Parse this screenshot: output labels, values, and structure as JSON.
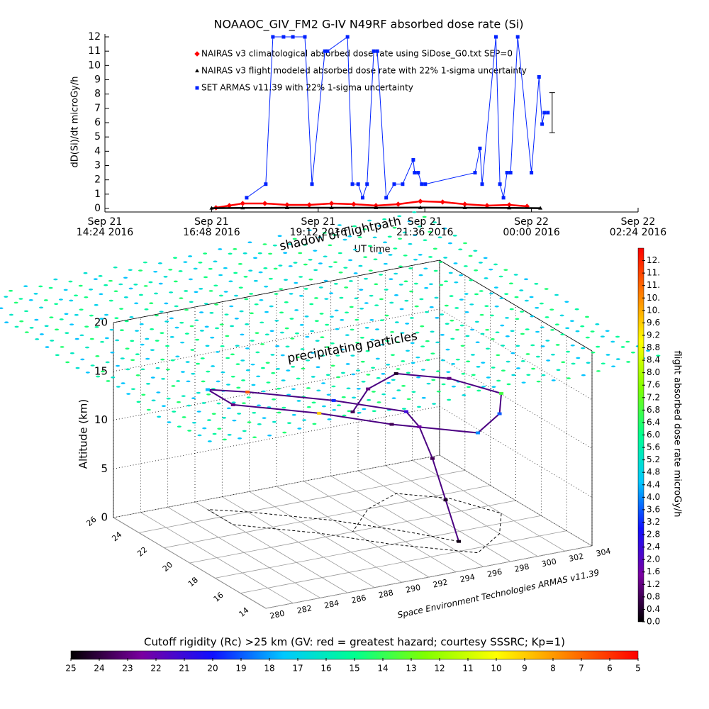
{
  "chart_data": [
    {
      "type": "line",
      "title": "NOAAOC_GIV_FM2 G-IV   N49RF  absorbed dose rate (Si)",
      "y_label": "dD(Si)/dt microGy/h",
      "x_label": "UT time",
      "xlim": [
        14.4,
        26.4
      ],
      "xticks": [
        {
          "value": 14.4,
          "label": "Sep 21\n14:24 2016"
        },
        {
          "value": 16.8,
          "label": "Sep 21\n16:48 2016"
        },
        {
          "value": 19.2,
          "label": "Sep 21\n19:12 2016"
        },
        {
          "value": 21.6,
          "label": "Sep 21\n21:36 2016"
        },
        {
          "value": 24,
          "label": "Sep 22\n00:00 2016"
        },
        {
          "value": 26.4,
          "label": "Sep 22\n02:24 2016"
        }
      ],
      "ylim": [
        0,
        12
      ],
      "yticks": [
        0,
        1,
        2,
        3,
        4,
        5,
        6,
        7,
        8,
        9,
        10,
        11,
        12
      ],
      "series": [
        {
          "name": "NAIRAS v3 climatological absorbed dose rate using SiDose_G0.txt SEP=0",
          "color": "#ff0000",
          "marker": "diamond",
          "x": [
            16.9,
            17.2,
            17.5,
            18.0,
            18.5,
            19.0,
            19.5,
            20.0,
            20.5,
            21.0,
            21.5,
            22.0,
            22.5,
            23.0,
            23.5,
            23.9
          ],
          "values": [
            0.05,
            0.2,
            0.35,
            0.35,
            0.25,
            0.25,
            0.35,
            0.3,
            0.2,
            0.3,
            0.5,
            0.45,
            0.3,
            0.2,
            0.25,
            0.15
          ]
        },
        {
          "name": "NAIRAS v3 flight modeled absorbed dose rate with 22% 1-sigma uncertainty",
          "color": "#000000",
          "marker": "triangle",
          "x": [
            16.8,
            17.5,
            18.5,
            19.5,
            20.5,
            21.5,
            22.5,
            23.5,
            24.2
          ],
          "values": [
            0.02,
            0.04,
            0.05,
            0.05,
            0.05,
            0.06,
            0.05,
            0.04,
            0.02
          ]
        },
        {
          "name": "SET ARMAS v11.39 with 22% 1-sigma uncertainty",
          "color": "#0022ff",
          "marker": "square",
          "x": [
            17.59,
            18.02,
            18.18,
            18.42,
            18.63,
            18.9,
            19.06,
            19.35,
            19.41,
            19.86,
            19.97,
            20.1,
            20.2,
            20.3,
            20.45,
            20.53,
            20.73,
            20.91,
            21.1,
            21.34,
            21.37,
            21.45,
            21.53,
            21.61,
            22.73,
            22.84,
            22.89,
            23.2,
            23.29,
            23.37,
            23.45,
            23.53,
            23.69,
            24.0,
            24.17,
            24.24,
            24.29,
            24.37
          ],
          "values": [
            0.75,
            1.7,
            12,
            12,
            12,
            12,
            1.7,
            11,
            11,
            12,
            1.7,
            1.7,
            0.75,
            1.7,
            11,
            11,
            0.75,
            1.7,
            1.7,
            3.4,
            2.5,
            2.5,
            1.7,
            1.7,
            2.5,
            4.2,
            1.7,
            12,
            1.7,
            0.75,
            2.5,
            2.5,
            12,
            2.5,
            9.2,
            5.9,
            6.7,
            6.7
          ],
          "error_index": 37,
          "error": 1.4
        }
      ]
    },
    {
      "type": "scatter3d",
      "annotations": [
        "shadow of flightpath",
        "precipitating particles"
      ],
      "z_label": "Altitude (km)",
      "credit": "Space Environment Technologies ARMAS v11.39",
      "xlim": [
        280,
        304
      ],
      "xticks": [
        280,
        282,
        284,
        286,
        288,
        290,
        292,
        294,
        296,
        298,
        300,
        302,
        304
      ],
      "ylim": [
        14,
        26
      ],
      "yticks": [
        14,
        16,
        18,
        20,
        22,
        24,
        26
      ],
      "zlim": [
        0,
        20
      ],
      "zticks": [
        0,
        5,
        10,
        15,
        20
      ],
      "colormap": [
        "#000000",
        "#7a00a0",
        "#1010ff",
        "#00c8ff",
        "#00ff90",
        "#80ff00",
        "#ffff00",
        "#ff8000",
        "#ff0000"
      ],
      "flight": {
        "lon": [
          297,
          296.5,
          296,
          295.5,
          295,
          292,
          288,
          286,
          286,
          290,
          293,
          297,
          300,
          302,
          300.5,
          298,
          295,
          292
        ],
        "lat": [
          17,
          17.5,
          18,
          18.5,
          19,
          21.5,
          24,
          25,
          23,
          20.5,
          18,
          15.5,
          17,
          19,
          21.5,
          23,
          22,
          20
        ],
        "alt": [
          0,
          4,
          8,
          11,
          12.3,
          12.3,
          12.3,
          12.3,
          12.3,
          12.3,
          12.3,
          12.3,
          12.3,
          12.3,
          12.3,
          12.3,
          12.3,
          12.3
        ],
        "dose": [
          0.2,
          0.4,
          0.8,
          1.6,
          2.4,
          3.2,
          11,
          4.4,
          1.2,
          9.6,
          0.8,
          4.0,
          3.6,
          6.8,
          1.2,
          0.4,
          1.2,
          0.8
        ]
      },
      "colorbars": [
        {
          "title": "flight absorbed dose rate microGy/h",
          "clim": [
            0,
            12
          ],
          "ticks": [
            {
              "value": 0,
              "label": "0.0"
            },
            0.4,
            0.8,
            1.2,
            1.6,
            {
              "value": 2,
              "label": "2.0"
            },
            2.4,
            2.8,
            3.2,
            3.6,
            {
              "value": 4,
              "label": "4.0"
            },
            4.4,
            4.8,
            5.2,
            5.6,
            {
              "value": 6,
              "label": "6.0"
            },
            6.4,
            6.8,
            7.2,
            7.6,
            {
              "value": 8,
              "label": "8.0"
            },
            8.4,
            8.8,
            9.2,
            9.6,
            {
              "value": 10,
              "label": "10."
            },
            {
              "value": 10.4,
              "label": "10."
            },
            {
              "value": 10.8,
              "label": "11."
            },
            {
              "value": 11.2,
              "label": "11."
            },
            {
              "value": 11.6,
              "label": "12."
            }
          ]
        },
        {
          "title": "Cutoff rigidity (Rc) >25 km (GV: red = greatest hazard; courtesy SSSRC; Kp=1)",
          "clim": [
            25,
            5
          ],
          "ticks": [
            25,
            24,
            23,
            22,
            21,
            20,
            19,
            18,
            17,
            16,
            15,
            14,
            13,
            12,
            11,
            10,
            9,
            8,
            7,
            6,
            5
          ]
        }
      ]
    }
  ]
}
